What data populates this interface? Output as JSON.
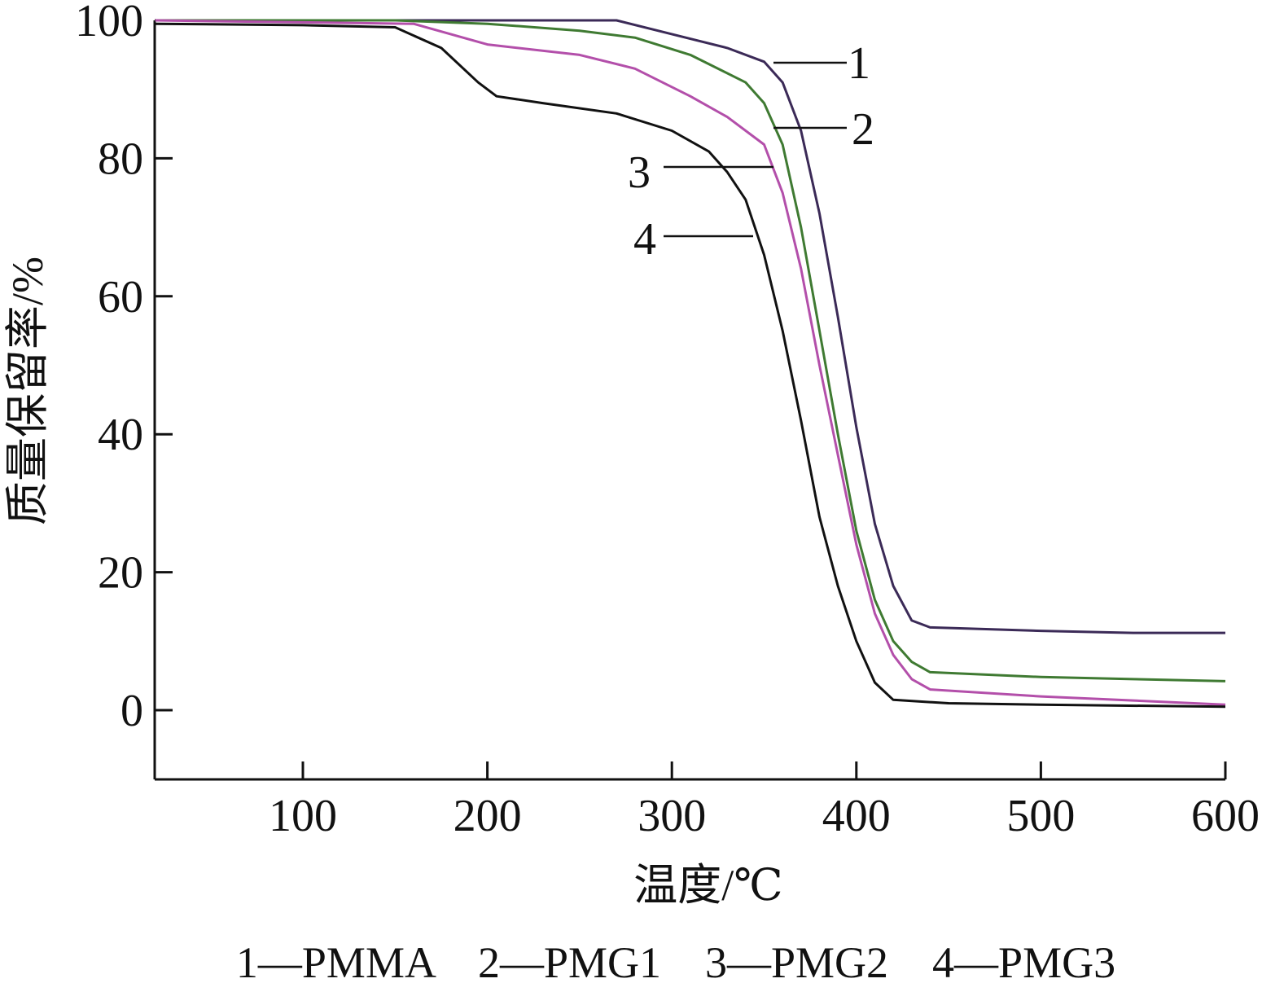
{
  "chart_data": {
    "type": "line",
    "title": "",
    "xlabel": "温度/℃",
    "ylabel": "质量保留率/%",
    "xlim": [
      20,
      600
    ],
    "ylim": [
      -10,
      100
    ],
    "xticks": [
      100,
      200,
      300,
      400,
      500,
      600
    ],
    "yticks": [
      0,
      20,
      40,
      60,
      80,
      100
    ],
    "grid": false,
    "legend_text": "1—PMMA　2—PMG1　3—PMG2　4—PMG3",
    "legend_placement": "bottom",
    "series": [
      {
        "name": "PMMA",
        "label": "1",
        "color": "#3b2a57",
        "x": [
          20,
          100,
          200,
          270,
          300,
          330,
          350,
          360,
          370,
          380,
          390,
          400,
          410,
          420,
          430,
          440,
          500,
          550,
          600
        ],
        "y": [
          100,
          100,
          100,
          100,
          98,
          96,
          94,
          91,
          84,
          72,
          57,
          41,
          27,
          18,
          13,
          12,
          11.5,
          11.2,
          11.2
        ]
      },
      {
        "name": "PMG1",
        "label": "2",
        "color": "#3f7a32",
        "x": [
          20,
          150,
          200,
          250,
          280,
          310,
          340,
          350,
          360,
          370,
          380,
          390,
          400,
          410,
          420,
          430,
          440,
          500,
          550,
          600
        ],
        "y": [
          100,
          100,
          99.5,
          98.5,
          97.5,
          95,
          91,
          88,
          82,
          70,
          55,
          40,
          26,
          16,
          10,
          7,
          5.5,
          4.8,
          4.5,
          4.2
        ]
      },
      {
        "name": "PMG2",
        "label": "3",
        "color": "#b34faa",
        "x": [
          20,
          160,
          200,
          250,
          280,
          310,
          330,
          350,
          360,
          370,
          380,
          390,
          400,
          410,
          420,
          430,
          440,
          500,
          550,
          600
        ],
        "y": [
          100,
          99.5,
          96.5,
          95,
          93,
          89,
          86,
          82,
          75,
          64,
          50,
          37,
          24,
          14,
          8,
          4.5,
          3,
          2,
          1.4,
          0.8
        ]
      },
      {
        "name": "PMG3",
        "label": "4",
        "color": "#111111",
        "x": [
          20,
          100,
          150,
          175,
          195,
          205,
          230,
          270,
          300,
          320,
          330,
          340,
          350,
          360,
          370,
          380,
          390,
          400,
          410,
          420,
          450,
          500,
          600
        ],
        "y": [
          99.5,
          99.3,
          99,
          96,
          91,
          89,
          88,
          86.5,
          84,
          81,
          78,
          74,
          66,
          55,
          42,
          28,
          18,
          10,
          4,
          1.5,
          1,
          0.8,
          0.5
        ]
      }
    ]
  }
}
